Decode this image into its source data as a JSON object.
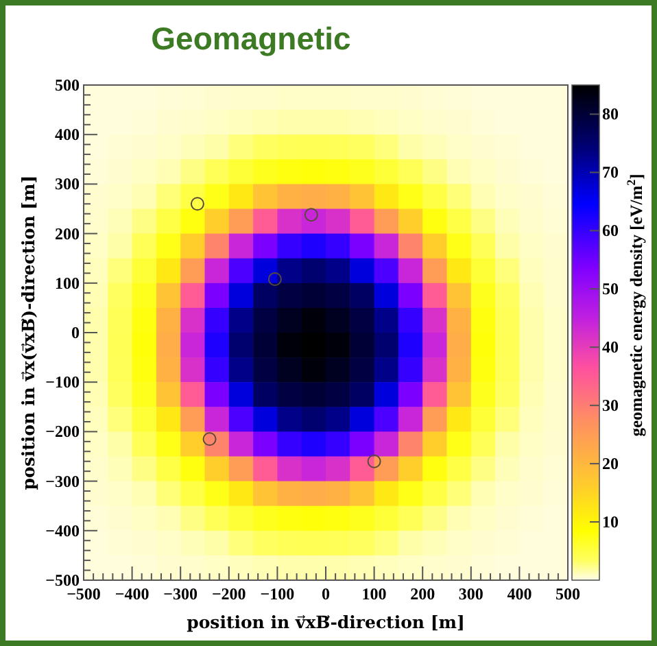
{
  "chart_data": {
    "type": "heatmap",
    "title": "Geomagnetic",
    "xlabel": "position in  v⃗xB⃗-direction [m]",
    "ylabel": "position in  v⃗x(v⃗xB⃗)-direction [m]",
    "clabel": "geomagnetic energy density [eV/m$^{2}$]",
    "xlim": [
      -500,
      500
    ],
    "ylim": [
      -500,
      500
    ],
    "xticks": [
      -500,
      -400,
      -300,
      -200,
      -100,
      0,
      100,
      200,
      300,
      400,
      500
    ],
    "yticks": [
      -500,
      -400,
      -300,
      -200,
      -100,
      0,
      100,
      200,
      300,
      400,
      500
    ],
    "clim": [
      0,
      85
    ],
    "cticks": [
      10,
      20,
      30,
      40,
      50,
      60,
      70,
      80
    ],
    "cells": [
      [
        0.3,
        0.3,
        0.3,
        0.4,
        0.5,
        0.6,
        0.7,
        0.7,
        0.8,
        0.8,
        0.8,
        0.7,
        0.7,
        0.6,
        0.5,
        0.4,
        0.3,
        0.3,
        0.3,
        0.3
      ],
      [
        0.3,
        0.3,
        0.4,
        0.6,
        0.7,
        0.9,
        1.1,
        1.3,
        1.5,
        1.5,
        1.5,
        1.3,
        1.1,
        0.9,
        0.7,
        0.6,
        0.4,
        0.3,
        0.3,
        0.3
      ],
      [
        0.3,
        0.5,
        0.6,
        0.8,
        1.2,
        1.6,
        2.7,
        3.4,
        3.8,
        4,
        3.8,
        3.4,
        2.7,
        1.6,
        1.2,
        0.8,
        0.6,
        0.5,
        0.3,
        0.3
      ],
      [
        0.4,
        0.6,
        0.9,
        1.3,
        2.5,
        3.8,
        5.5,
        6.9,
        7.7,
        8,
        7.7,
        6.9,
        5.5,
        3.8,
        2.5,
        1.3,
        0.9,
        0.6,
        0.4,
        0.3
      ],
      [
        0.6,
        0.8,
        1.3,
        2.8,
        4.8,
        7.2,
        12,
        18,
        21,
        22,
        21,
        18,
        12,
        7.2,
        4.8,
        2.8,
        1.3,
        0.8,
        0.6,
        0.4
      ],
      [
        0.7,
        1.2,
        2.5,
        4.8,
        7.7,
        16,
        25,
        35,
        42,
        44,
        42,
        35,
        25,
        16,
        7.7,
        4.8,
        2.5,
        1.2,
        0.7,
        0.5
      ],
      [
        0.9,
        1.6,
        3.8,
        7.2,
        16,
        29,
        44,
        54,
        60,
        62,
        60,
        54,
        44,
        29,
        16,
        7.2,
        3.8,
        1.6,
        0.9,
        0.6
      ],
      [
        1.1,
        2.7,
        5.5,
        12,
        25,
        44,
        58,
        67,
        73,
        75,
        73,
        67,
        58,
        44,
        25,
        12,
        5.5,
        2.7,
        1.1,
        0.7
      ],
      [
        1.3,
        3.4,
        6.9,
        18,
        35,
        54,
        67,
        76,
        79,
        80,
        79,
        76,
        67,
        54,
        35,
        18,
        6.9,
        3.4,
        1.3,
        0.7
      ],
      [
        1.5,
        3.8,
        7.7,
        21,
        42,
        60,
        73,
        79,
        82,
        84,
        82,
        79,
        73,
        60,
        42,
        21,
        7.7,
        3.8,
        1.5,
        0.8
      ],
      [
        1.5,
        4,
        8,
        22,
        44,
        62,
        75,
        80,
        84,
        85,
        84,
        80,
        75,
        62,
        44,
        22,
        8,
        4,
        1.5,
        0.8
      ],
      [
        1.5,
        3.8,
        7.7,
        21,
        42,
        60,
        73,
        79,
        82,
        84,
        82,
        79,
        73,
        60,
        42,
        21,
        7.7,
        3.8,
        1.5,
        0.8
      ],
      [
        1.3,
        3.4,
        6.9,
        18,
        35,
        54,
        67,
        76,
        79,
        80,
        79,
        76,
        67,
        54,
        35,
        18,
        6.9,
        3.4,
        1.3,
        0.7
      ],
      [
        1.1,
        2.7,
        5.5,
        12,
        25,
        44,
        58,
        67,
        73,
        75,
        73,
        67,
        58,
        44,
        25,
        12,
        5.5,
        2.7,
        1.1,
        0.7
      ],
      [
        0.9,
        1.6,
        3.8,
        7.2,
        16,
        29,
        44,
        54,
        60,
        62,
        60,
        54,
        44,
        29,
        16,
        7.2,
        3.8,
        1.6,
        0.9,
        0.6
      ],
      [
        0.7,
        1.2,
        2.5,
        4.8,
        7.7,
        16,
        25,
        35,
        42,
        44,
        42,
        35,
        25,
        16,
        7.7,
        4.8,
        2.5,
        1.2,
        0.7,
        0.5
      ],
      [
        0.6,
        0.8,
        1.3,
        2.8,
        4.8,
        7.2,
        12,
        18,
        21,
        22,
        21,
        18,
        12,
        7.2,
        4.8,
        2.8,
        1.3,
        0.8,
        0.6,
        0.4
      ],
      [
        0.4,
        0.6,
        0.9,
        1.3,
        2.5,
        3.8,
        5.5,
        6.9,
        7.7,
        8,
        7.7,
        6.9,
        5.5,
        3.8,
        2.5,
        1.3,
        0.9,
        0.6,
        0.4,
        0.3
      ],
      [
        0.3,
        0.5,
        0.6,
        0.8,
        1.2,
        1.6,
        2.7,
        3.4,
        3.8,
        4,
        3.8,
        3.4,
        2.7,
        1.6,
        1.2,
        0.8,
        0.6,
        0.5,
        0.3,
        0.3
      ],
      [
        0.3,
        0.3,
        0.4,
        0.6,
        0.7,
        0.9,
        1.1,
        1.3,
        1.5,
        1.5,
        1.5,
        1.3,
        1.1,
        0.9,
        0.7,
        0.6,
        0.4,
        0.3,
        0.3,
        0.3
      ]
    ],
    "series": [
      {
        "type": "scatter",
        "color": "#5a4a3a",
        "x": [
          -265,
          -30,
          -105,
          -240,
          100
        ],
        "values": [
          260,
          238,
          108,
          -215,
          -260
        ]
      }
    ],
    "marker": "circle"
  }
}
